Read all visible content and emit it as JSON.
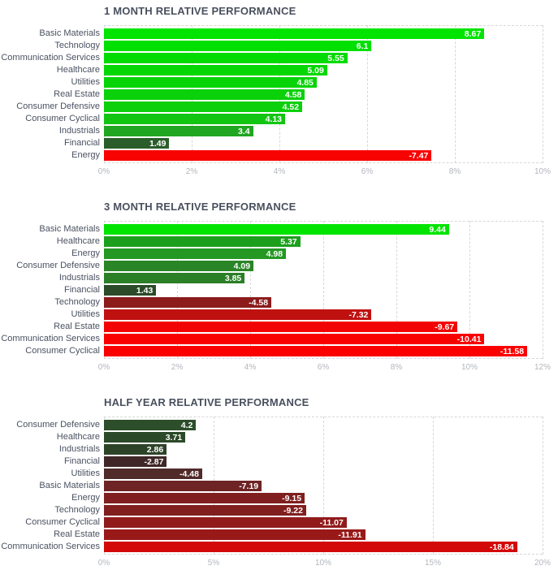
{
  "page": {
    "background": "#ffffff"
  },
  "styles": {
    "title_color": "#49505e",
    "category_label_color": "#4a5160",
    "tick_label_color": "#b2b6bd",
    "value_label_color": "#ffffff",
    "gridline_color": "#d7d7d7"
  },
  "chart_data": [
    {
      "type": "bar",
      "orientation": "horizontal",
      "title": "1 MONTH RELATIVE PERFORMANCE",
      "xlabel": "",
      "ylabel": "",
      "grid": "dashed-vertical",
      "legend": "none",
      "axis_ticks": [
        "0%",
        "2%",
        "4%",
        "6%",
        "8%",
        "10%"
      ],
      "axis_max": 10,
      "bars": [
        {
          "label": "Basic Materials",
          "value": 8.67,
          "display": "8.67",
          "color": "#00e400"
        },
        {
          "label": "Technology",
          "value": 6.1,
          "display": "6.1",
          "color": "#00e000"
        },
        {
          "label": "Communication Services",
          "value": 5.55,
          "display": "5.55",
          "color": "#02db02"
        },
        {
          "label": "Healthcare",
          "value": 5.09,
          "display": "5.09",
          "color": "#05d705"
        },
        {
          "label": "Utilities",
          "value": 4.85,
          "display": "4.85",
          "color": "#07d407"
        },
        {
          "label": "Real Estate",
          "value": 4.58,
          "display": "4.58",
          "color": "#0ad10a"
        },
        {
          "label": "Consumer Defensive",
          "value": 4.52,
          "display": "4.52",
          "color": "#0bd00b"
        },
        {
          "label": "Consumer Cyclical",
          "value": 4.13,
          "display": "4.13",
          "color": "#13c513"
        },
        {
          "label": "Industrials",
          "value": 3.4,
          "display": "3.4",
          "color": "#20a620"
        },
        {
          "label": "Financial",
          "value": 1.49,
          "display": "1.49",
          "color": "#2b5d2b"
        },
        {
          "label": "Energy",
          "value": -7.47,
          "display": "-7.47",
          "color": "#f90202"
        }
      ]
    },
    {
      "type": "bar",
      "orientation": "horizontal",
      "title": "3 MONTH RELATIVE PERFORMANCE",
      "xlabel": "",
      "ylabel": "",
      "grid": "dashed-vertical",
      "legend": "none",
      "axis_ticks": [
        "0%",
        "2%",
        "4%",
        "6%",
        "8%",
        "10%",
        "12%"
      ],
      "axis_max": 12,
      "bars": [
        {
          "label": "Basic Materials",
          "value": 9.44,
          "display": "9.44",
          "color": "#00e400"
        },
        {
          "label": "Healthcare",
          "value": 5.37,
          "display": "5.37",
          "color": "#1c9f1c"
        },
        {
          "label": "Energy",
          "value": 4.98,
          "display": "4.98",
          "color": "#249822"
        },
        {
          "label": "Consumer Defensive",
          "value": 4.09,
          "display": "4.09",
          "color": "#2a8526"
        },
        {
          "label": "Industrials",
          "value": 3.85,
          "display": "3.85",
          "color": "#2b7f27"
        },
        {
          "label": "Financial",
          "value": 1.43,
          "display": "1.43",
          "color": "#2c4b28"
        },
        {
          "label": "Technology",
          "value": -4.58,
          "display": "-4.58",
          "color": "#8c1b1b"
        },
        {
          "label": "Utilities",
          "value": -7.32,
          "display": "-7.32",
          "color": "#c01111"
        },
        {
          "label": "Real Estate",
          "value": -9.67,
          "display": "-9.67",
          "color": "#f20404"
        },
        {
          "label": "Communication Services",
          "value": -10.41,
          "display": "-10.41",
          "color": "#f90101"
        },
        {
          "label": "Consumer Cyclical",
          "value": -11.58,
          "display": "-11.58",
          "color": "#fb0000"
        }
      ]
    },
    {
      "type": "bar",
      "orientation": "horizontal",
      "title": "HALF YEAR RELATIVE PERFORMANCE",
      "xlabel": "",
      "ylabel": "",
      "grid": "dashed-vertical",
      "legend": "none",
      "axis_ticks": [
        "0%",
        "5%",
        "10%",
        "15%",
        "20%"
      ],
      "axis_max": 20,
      "bars": [
        {
          "label": "Consumer Defensive",
          "value": 4.2,
          "display": "4.2",
          "color": "#2c4e2a"
        },
        {
          "label": "Healthcare",
          "value": 3.71,
          "display": "3.71",
          "color": "#2c4929"
        },
        {
          "label": "Industrials",
          "value": 2.86,
          "display": "2.86",
          "color": "#2d4328"
        },
        {
          "label": "Financial",
          "value": -2.87,
          "display": "-2.87",
          "color": "#402727"
        },
        {
          "label": "Utilities",
          "value": -4.48,
          "display": "-4.48",
          "color": "#512a2a"
        },
        {
          "label": "Basic Materials",
          "value": -7.19,
          "display": "-7.19",
          "color": "#6e2424"
        },
        {
          "label": "Energy",
          "value": -9.15,
          "display": "-9.15",
          "color": "#801f1f"
        },
        {
          "label": "Technology",
          "value": -9.22,
          "display": "-9.22",
          "color": "#811f1f"
        },
        {
          "label": "Consumer Cyclical",
          "value": -11.07,
          "display": "-11.07",
          "color": "#911b1b"
        },
        {
          "label": "Real Estate",
          "value": -11.91,
          "display": "-11.91",
          "color": "#991919"
        },
        {
          "label": "Communication Services",
          "value": -18.84,
          "display": "-18.84",
          "color": "#d30808"
        }
      ]
    }
  ]
}
